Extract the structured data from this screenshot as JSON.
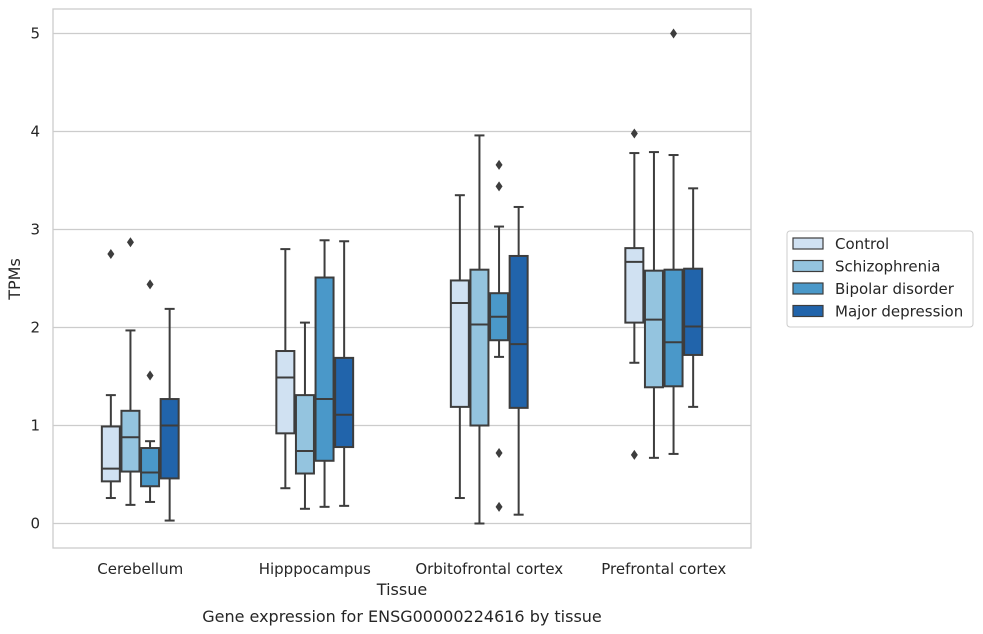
{
  "caption": "Gene expression for ENSG00000224616 by tissue",
  "chart_data": {
    "type": "box",
    "xlabel": "Tissue",
    "ylabel": "TPMs",
    "ylim": [
      -0.25,
      5.25
    ],
    "yticks": [
      0,
      1,
      2,
      3,
      4,
      5
    ],
    "grid": "horizontal",
    "legend_position": "right",
    "categories": [
      "Cerebellum",
      "Hipppocampus",
      "Orbitofrontal cortex",
      "Prefrontal cortex"
    ],
    "series": [
      {
        "name": "Control",
        "color": "#d0e1f2",
        "boxes": [
          {
            "whislo": 0.26,
            "q1": 0.43,
            "med": 0.56,
            "q3": 0.99,
            "whishi": 1.31,
            "fliers": [
              2.75
            ]
          },
          {
            "whislo": 0.36,
            "q1": 0.92,
            "med": 1.49,
            "q3": 1.76,
            "whishi": 2.8,
            "fliers": []
          },
          {
            "whislo": 0.26,
            "q1": 1.19,
            "med": 2.25,
            "q3": 2.48,
            "whishi": 3.35,
            "fliers": []
          },
          {
            "whislo": 1.64,
            "q1": 2.05,
            "med": 2.67,
            "q3": 2.81,
            "whishi": 3.78,
            "fliers": [
              3.98,
              0.7
            ]
          }
        ]
      },
      {
        "name": "Schizophrenia",
        "color": "#94c4df",
        "boxes": [
          {
            "whislo": 0.19,
            "q1": 0.53,
            "med": 0.88,
            "q3": 1.15,
            "whishi": 1.97,
            "fliers": [
              2.87
            ]
          },
          {
            "whislo": 0.15,
            "q1": 0.51,
            "med": 0.74,
            "q3": 1.31,
            "whishi": 2.05,
            "fliers": []
          },
          {
            "whislo": 0.0,
            "q1": 1.0,
            "med": 2.03,
            "q3": 2.59,
            "whishi": 3.96,
            "fliers": []
          },
          {
            "whislo": 0.67,
            "q1": 1.39,
            "med": 2.08,
            "q3": 2.58,
            "whishi": 3.79,
            "fliers": []
          }
        ]
      },
      {
        "name": "Bipolar disorder",
        "color": "#4a98c9",
        "boxes": [
          {
            "whislo": 0.22,
            "q1": 0.38,
            "med": 0.52,
            "q3": 0.77,
            "whishi": 0.84,
            "fliers": [
              2.44,
              1.51
            ]
          },
          {
            "whislo": 0.17,
            "q1": 0.64,
            "med": 1.27,
            "q3": 2.51,
            "whishi": 2.89,
            "fliers": []
          },
          {
            "whislo": 1.7,
            "q1": 1.87,
            "med": 2.11,
            "q3": 2.35,
            "whishi": 3.03,
            "fliers": [
              3.66,
              3.44,
              0.72,
              0.17
            ]
          },
          {
            "whislo": 0.71,
            "q1": 1.4,
            "med": 1.85,
            "q3": 2.59,
            "whishi": 3.76,
            "fliers": [
              5.0
            ]
          }
        ]
      },
      {
        "name": "Major depression",
        "color": "#2164ab",
        "boxes": [
          {
            "whislo": 0.03,
            "q1": 0.46,
            "med": 1.0,
            "q3": 1.27,
            "whishi": 2.19,
            "fliers": []
          },
          {
            "whislo": 0.18,
            "q1": 0.78,
            "med": 1.11,
            "q3": 1.69,
            "whishi": 2.88,
            "fliers": []
          },
          {
            "whislo": 0.09,
            "q1": 1.18,
            "med": 1.83,
            "q3": 2.73,
            "whishi": 3.23,
            "fliers": []
          },
          {
            "whislo": 1.19,
            "q1": 1.72,
            "med": 2.01,
            "q3": 2.6,
            "whishi": 3.42,
            "fliers": []
          }
        ]
      }
    ]
  }
}
